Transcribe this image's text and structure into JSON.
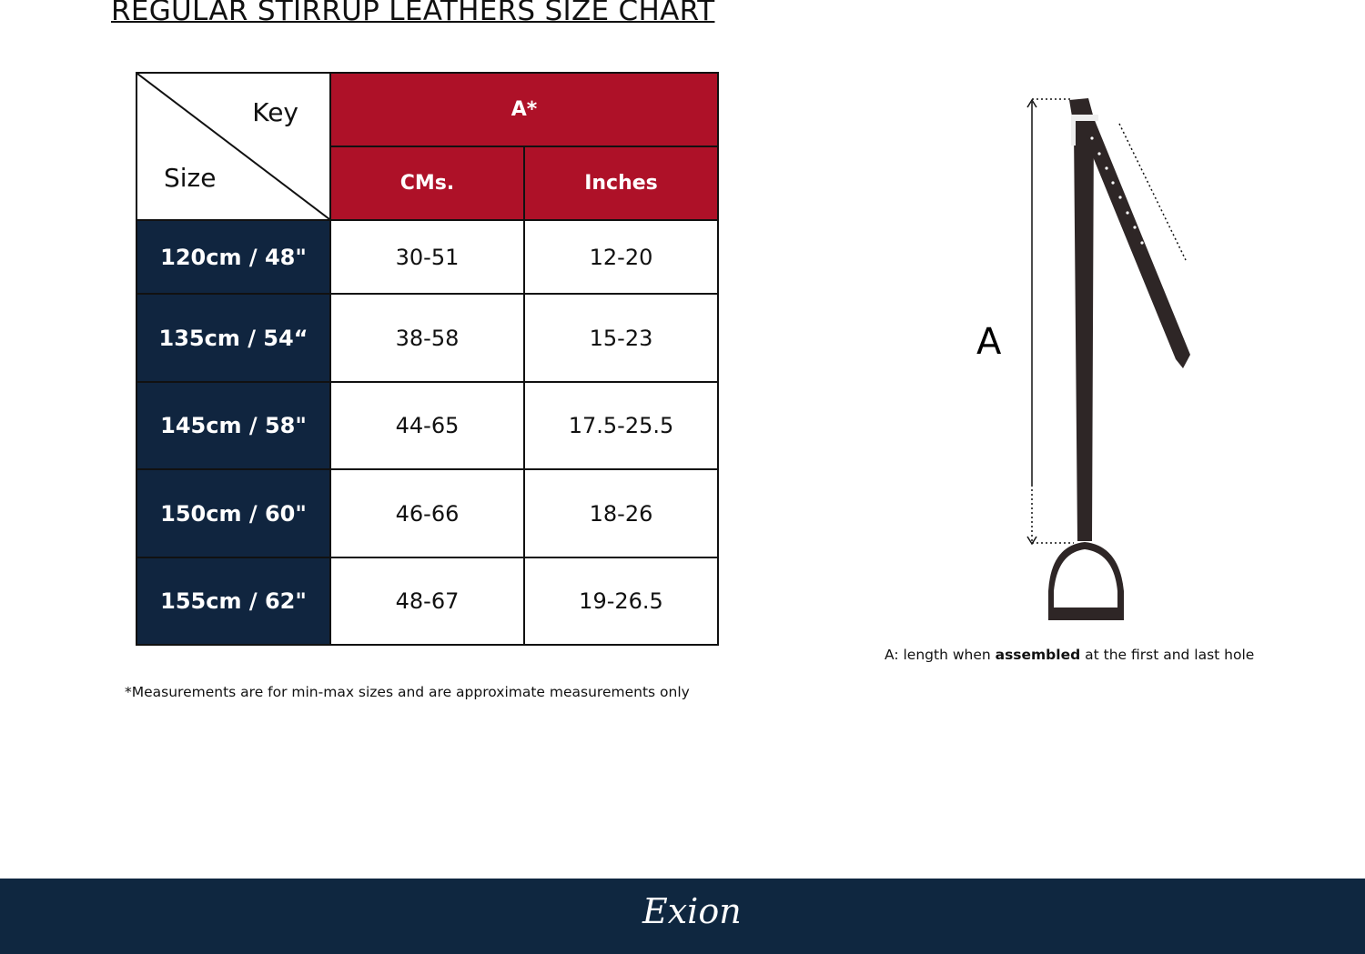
{
  "title": "REGULAR STIRRUP LEATHERS  SIZE CHART",
  "table": {
    "key_label": "Key",
    "size_label": "Size",
    "group_header": "A*",
    "col_headers": [
      "CMs.",
      "Inches"
    ],
    "rows": [
      {
        "size": "120cm / 48\"",
        "cms": "30-51",
        "inches": "12-20"
      },
      {
        "size": "135cm / 54“",
        "cms": "38-58",
        "inches": "15-23"
      },
      {
        "size": "145cm / 58\"",
        "cms": "44-65",
        "inches": "17.5-25.5"
      },
      {
        "size": "150cm / 60\"",
        "cms": "46-66",
        "inches": "18-26"
      },
      {
        "size": "155cm / 62\"",
        "cms": "48-67",
        "inches": "19-26.5"
      }
    ]
  },
  "note": "*Measurements are for min-max sizes and are approximate measurements only",
  "diagram": {
    "label": "A",
    "caption_pre": "A: length when ",
    "caption_bold": "assembled",
    "caption_post": " at the first and last hole"
  },
  "footer": {
    "brand": "Exion"
  },
  "colors": {
    "header_red": "#ae1128",
    "size_navy": "#10253f",
    "footer_navy": "#0f2740",
    "leather": "#2e2626"
  }
}
